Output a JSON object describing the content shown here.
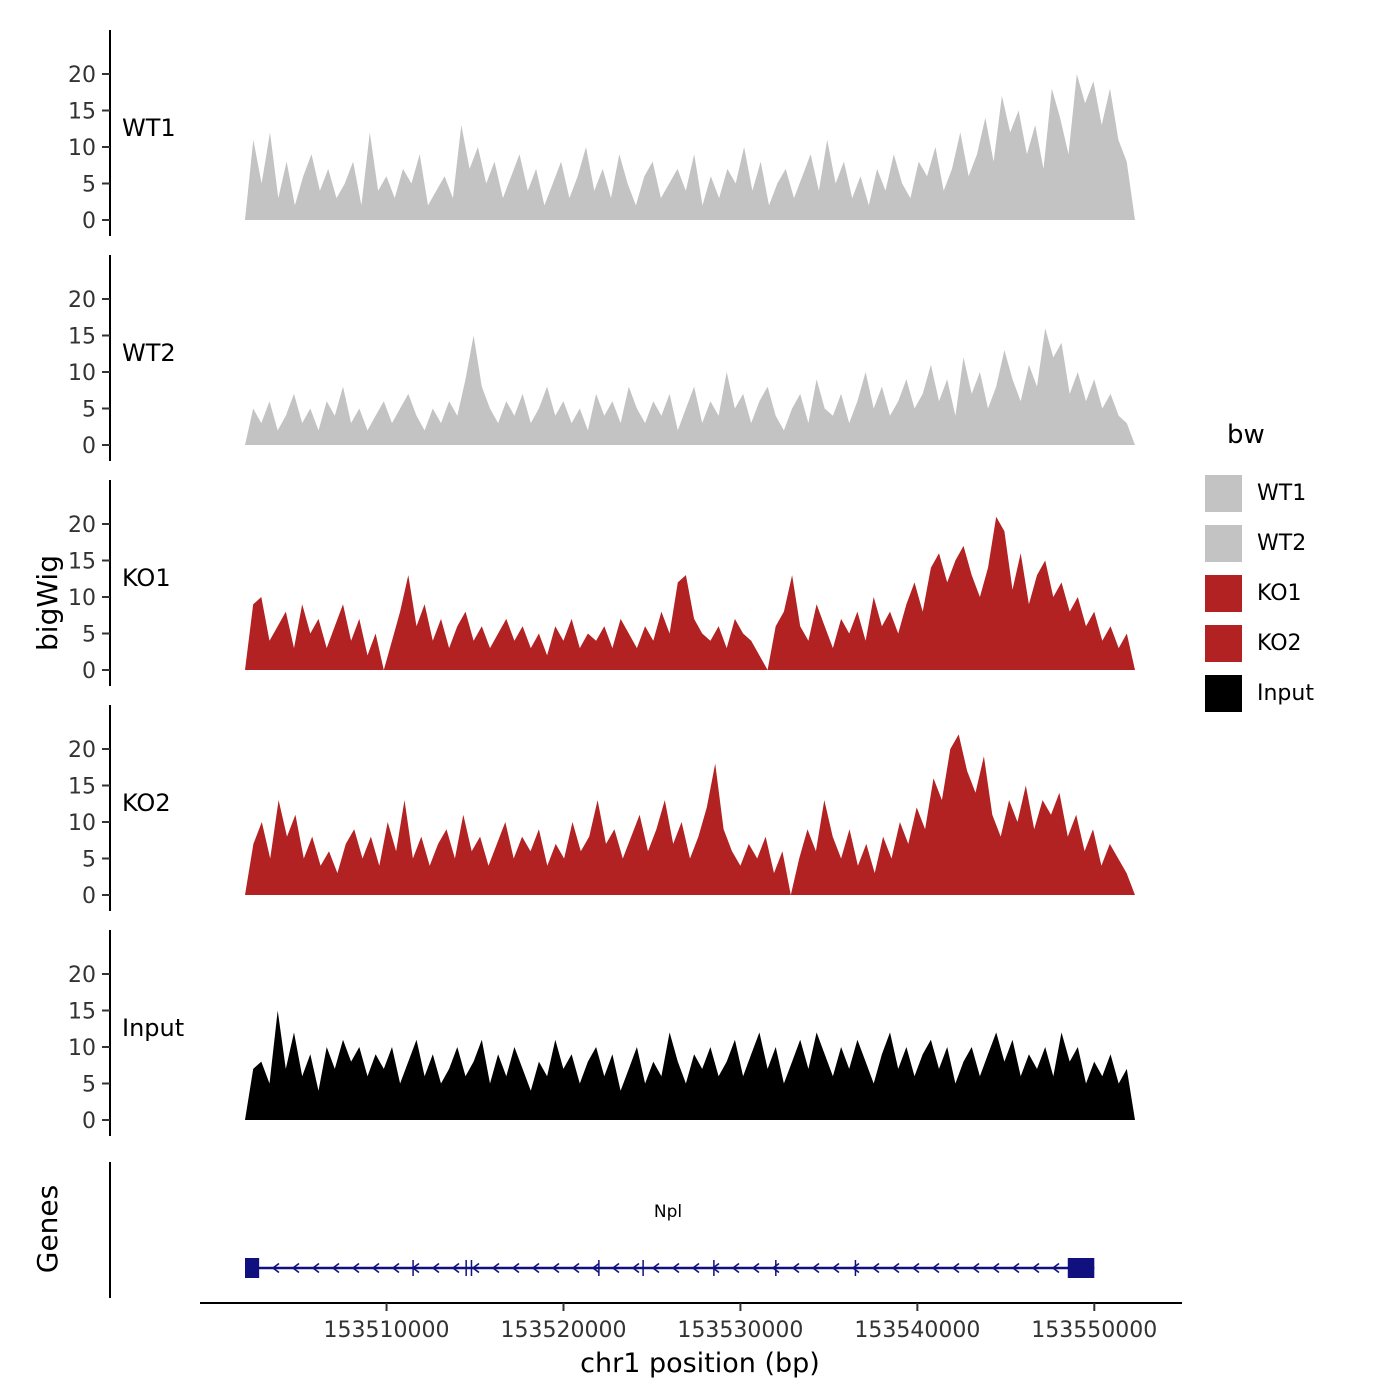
{
  "figure": {
    "ylabel": "bigWig",
    "genes_label": "Genes",
    "xlabel": "chr1 position (bp)",
    "gene_name": "Npl"
  },
  "legend": {
    "title": "bw",
    "entries": [
      {
        "label": "WT1",
        "color": "#c3c3c3"
      },
      {
        "label": "WT2",
        "color": "#c3c3c3"
      },
      {
        "label": "KO1",
        "color": "#b22222"
      },
      {
        "label": "KO2",
        "color": "#b22222"
      },
      {
        "label": "Input",
        "color": "#000000"
      }
    ]
  },
  "chart_data": {
    "type": "area",
    "xlabel": "chr1 position (bp)",
    "ylabel": "bigWig",
    "xlim": [
      153502000,
      153552300
    ],
    "ylim": [
      0,
      23
    ],
    "y_ticks": [
      0,
      5,
      10,
      15,
      20
    ],
    "x_ticks": [
      153510000,
      153520000,
      153530000,
      153540000,
      153550000
    ],
    "x_tick_labels": [
      "153510000",
      "153520000",
      "153530000",
      "153540000",
      "153550000"
    ],
    "tracks": [
      {
        "name": "WT1",
        "color": "#c3c3c3",
        "values": [
          0,
          11,
          5,
          12,
          3,
          8,
          2,
          6,
          9,
          4,
          7,
          3,
          5,
          8,
          2,
          12,
          4,
          6,
          3,
          7,
          5,
          9,
          2,
          4,
          6,
          3,
          13,
          7,
          10,
          5,
          8,
          3,
          6,
          9,
          4,
          7,
          2,
          5,
          8,
          3,
          6,
          10,
          4,
          7,
          3,
          9,
          5,
          2,
          6,
          8,
          3,
          5,
          7,
          4,
          9,
          2,
          6,
          3,
          7,
          5,
          10,
          4,
          8,
          2,
          5,
          7,
          3,
          6,
          9,
          4,
          11,
          5,
          8,
          3,
          6,
          2,
          7,
          4,
          9,
          5,
          3,
          8,
          6,
          10,
          4,
          7,
          12,
          6,
          9,
          14,
          8,
          17,
          12,
          15,
          9,
          13,
          7,
          18,
          14,
          9,
          20,
          16,
          19,
          13,
          18,
          11,
          8,
          0
        ]
      },
      {
        "name": "WT2",
        "color": "#c3c3c3",
        "values": [
          0,
          5,
          3,
          6,
          2,
          4,
          7,
          3,
          5,
          2,
          6,
          4,
          8,
          3,
          5,
          2,
          4,
          6,
          3,
          5,
          7,
          4,
          2,
          5,
          3,
          6,
          4,
          9,
          15,
          8,
          5,
          3,
          6,
          4,
          7,
          3,
          5,
          8,
          4,
          6,
          3,
          5,
          2,
          7,
          4,
          6,
          3,
          8,
          5,
          3,
          6,
          4,
          7,
          2,
          5,
          8,
          3,
          6,
          4,
          10,
          5,
          7,
          3,
          6,
          8,
          4,
          2,
          5,
          7,
          3,
          9,
          5,
          4,
          7,
          3,
          6,
          10,
          5,
          8,
          4,
          6,
          9,
          5,
          7,
          11,
          6,
          9,
          4,
          12,
          7,
          10,
          5,
          8,
          13,
          9,
          6,
          11,
          8,
          16,
          12,
          14,
          7,
          10,
          6,
          9,
          5,
          7,
          4,
          3,
          0
        ]
      },
      {
        "name": "KO1",
        "color": "#b22222",
        "values": [
          0,
          9,
          10,
          4,
          6,
          8,
          3,
          9,
          5,
          7,
          3,
          6,
          9,
          4,
          7,
          2,
          5,
          0,
          4,
          8,
          13,
          6,
          9,
          4,
          7,
          3,
          6,
          8,
          4,
          6,
          3,
          5,
          7,
          4,
          6,
          3,
          5,
          2,
          6,
          4,
          7,
          3,
          5,
          4,
          6,
          3,
          7,
          5,
          3,
          6,
          4,
          8,
          5,
          12,
          13,
          7,
          5,
          4,
          6,
          3,
          7,
          5,
          4,
          2,
          0,
          6,
          8,
          13,
          6,
          4,
          9,
          6,
          3,
          7,
          5,
          8,
          4,
          10,
          6,
          8,
          5,
          9,
          12,
          8,
          14,
          16,
          12,
          15,
          17,
          13,
          10,
          14,
          21,
          19,
          11,
          16,
          9,
          13,
          15,
          10,
          12,
          8,
          10,
          6,
          8,
          4,
          6,
          3,
          5,
          0
        ]
      },
      {
        "name": "KO2",
        "color": "#b22222",
        "values": [
          0,
          7,
          10,
          5,
          13,
          8,
          11,
          5,
          8,
          4,
          6,
          3,
          7,
          9,
          5,
          8,
          4,
          10,
          6,
          13,
          5,
          8,
          4,
          7,
          9,
          5,
          11,
          6,
          8,
          4,
          7,
          10,
          5,
          8,
          6,
          9,
          4,
          7,
          5,
          10,
          6,
          8,
          13,
          7,
          9,
          5,
          8,
          11,
          6,
          9,
          13,
          7,
          10,
          5,
          8,
          12,
          18,
          9,
          6,
          4,
          7,
          5,
          8,
          3,
          6,
          0,
          5,
          9,
          6,
          13,
          8,
          5,
          9,
          4,
          7,
          3,
          8,
          5,
          10,
          7,
          12,
          9,
          16,
          13,
          20,
          22,
          17,
          14,
          19,
          11,
          8,
          13,
          10,
          15,
          9,
          13,
          11,
          14,
          8,
          11,
          6,
          9,
          4,
          7,
          5,
          3,
          0
        ]
      },
      {
        "name": "Input",
        "color": "#000000",
        "values": [
          0,
          7,
          8,
          5,
          15,
          7,
          12,
          6,
          9,
          4,
          10,
          7,
          11,
          8,
          10,
          6,
          9,
          7,
          10,
          5,
          8,
          11,
          6,
          9,
          5,
          7,
          10,
          6,
          8,
          11,
          5,
          9,
          6,
          10,
          7,
          4,
          8,
          6,
          11,
          7,
          9,
          5,
          8,
          10,
          6,
          9,
          4,
          7,
          10,
          5,
          8,
          6,
          12,
          8,
          5,
          9,
          7,
          10,
          6,
          8,
          11,
          6,
          9,
          12,
          7,
          10,
          5,
          8,
          11,
          7,
          12,
          9,
          6,
          10,
          7,
          11,
          8,
          5,
          9,
          12,
          7,
          10,
          6,
          9,
          11,
          7,
          10,
          5,
          8,
          10,
          6,
          9,
          12,
          8,
          11,
          6,
          9,
          7,
          10,
          6,
          12,
          8,
          10,
          5,
          8,
          6,
          9,
          5,
          7,
          0
        ]
      }
    ]
  },
  "gene_track": {
    "label": "Genes",
    "gene": {
      "name": "Npl",
      "start": 153502000,
      "end": 153550000,
      "strand": "-",
      "color": "#10107e",
      "utr_blocks": [
        [
          153502000,
          153502800
        ],
        [
          153548500,
          153550000
        ]
      ],
      "exon_ticks": [
        153511500,
        153514500,
        153514800,
        153522000,
        153524500,
        153528500,
        153532000,
        153536500
      ]
    }
  }
}
